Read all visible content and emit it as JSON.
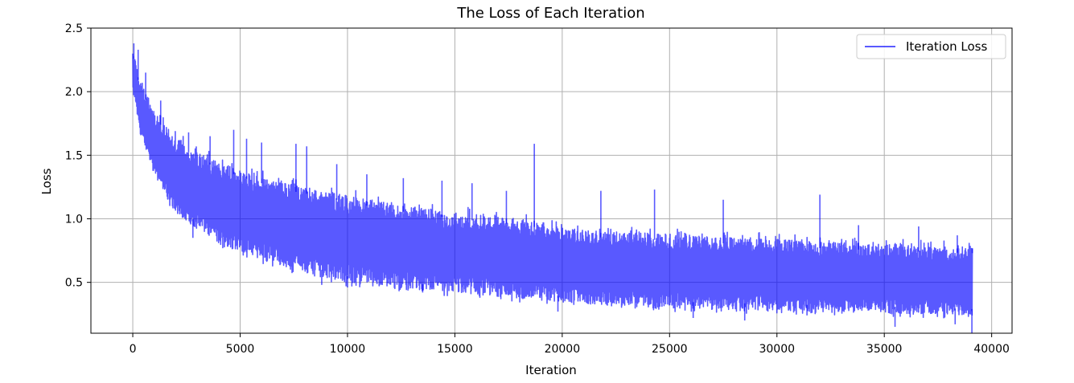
{
  "chart_data": {
    "type": "line",
    "title": "The Loss of Each Iteration",
    "xlabel": "Iteration",
    "ylabel": "Loss",
    "xlim": [
      -1950,
      40950
    ],
    "ylim": [
      0.1,
      2.5
    ],
    "x_ticks": [
      0,
      5000,
      10000,
      15000,
      20000,
      25000,
      30000,
      35000,
      40000
    ],
    "y_ticks": [
      0.5,
      1.0,
      1.5,
      2.0,
      2.5
    ],
    "x_tick_labels": [
      "0",
      "5000",
      "10000",
      "15000",
      "20000",
      "25000",
      "30000",
      "35000",
      "40000"
    ],
    "y_tick_labels": [
      "0.5",
      "1.0",
      "1.5",
      "2.0",
      "2.5"
    ],
    "grid": true,
    "legend_position": "top-right",
    "series": [
      {
        "name": "Iteration Loss",
        "color": "#0000ff",
        "opacity": 0.65,
        "envelope": {
          "x": [
            0,
            300,
            700,
            1000,
            2000,
            3000,
            4000,
            5000,
            6000,
            7000,
            8000,
            9000,
            10000,
            12000,
            15000,
            17000,
            19000,
            20000,
            22000,
            25000,
            27000,
            30000,
            32000,
            35000,
            37000,
            39100
          ],
          "upper": [
            2.35,
            2.1,
            1.95,
            1.85,
            1.65,
            1.52,
            1.45,
            1.38,
            1.33,
            1.28,
            1.25,
            1.22,
            1.18,
            1.12,
            1.05,
            1.02,
            0.98,
            0.93,
            0.9,
            0.88,
            0.86,
            0.84,
            0.82,
            0.8,
            0.79,
            0.78
          ],
          "lower": [
            2.0,
            1.7,
            1.5,
            1.35,
            1.05,
            0.92,
            0.8,
            0.75,
            0.68,
            0.62,
            0.58,
            0.54,
            0.5,
            0.45,
            0.42,
            0.39,
            0.36,
            0.34,
            0.32,
            0.3,
            0.29,
            0.28,
            0.27,
            0.26,
            0.25,
            0.24
          ]
        },
        "spikes": [
          {
            "x": 50,
            "y": 2.38
          },
          {
            "x": 250,
            "y": 2.33
          },
          {
            "x": 600,
            "y": 2.15
          },
          {
            "x": 1300,
            "y": 1.93
          },
          {
            "x": 2600,
            "y": 1.68
          },
          {
            "x": 3600,
            "y": 1.65
          },
          {
            "x": 4700,
            "y": 1.7
          },
          {
            "x": 5300,
            "y": 1.63
          },
          {
            "x": 6000,
            "y": 1.6
          },
          {
            "x": 7600,
            "y": 1.59
          },
          {
            "x": 8100,
            "y": 1.57
          },
          {
            "x": 9500,
            "y": 1.43
          },
          {
            "x": 10900,
            "y": 1.35
          },
          {
            "x": 12600,
            "y": 1.32
          },
          {
            "x": 14400,
            "y": 1.3
          },
          {
            "x": 15800,
            "y": 1.28
          },
          {
            "x": 17400,
            "y": 1.22
          },
          {
            "x": 18700,
            "y": 1.59
          },
          {
            "x": 21800,
            "y": 1.22
          },
          {
            "x": 24300,
            "y": 1.23
          },
          {
            "x": 27500,
            "y": 1.15
          },
          {
            "x": 32000,
            "y": 1.19
          },
          {
            "x": 33800,
            "y": 0.95
          },
          {
            "x": 36600,
            "y": 0.94
          },
          {
            "x": 38400,
            "y": 0.87
          },
          {
            "x": 39100,
            "y": 0.77
          }
        ],
        "dips": [
          {
            "x": 2800,
            "y": 0.85
          },
          {
            "x": 8800,
            "y": 0.48
          },
          {
            "x": 10000,
            "y": 0.46
          },
          {
            "x": 13500,
            "y": 0.42
          },
          {
            "x": 19800,
            "y": 0.27
          },
          {
            "x": 26100,
            "y": 0.22
          },
          {
            "x": 28500,
            "y": 0.2
          },
          {
            "x": 31400,
            "y": 0.24
          },
          {
            "x": 35500,
            "y": 0.15
          },
          {
            "x": 38300,
            "y": 0.17
          },
          {
            "x": 39080,
            "y": 0.1
          }
        ]
      }
    ]
  }
}
